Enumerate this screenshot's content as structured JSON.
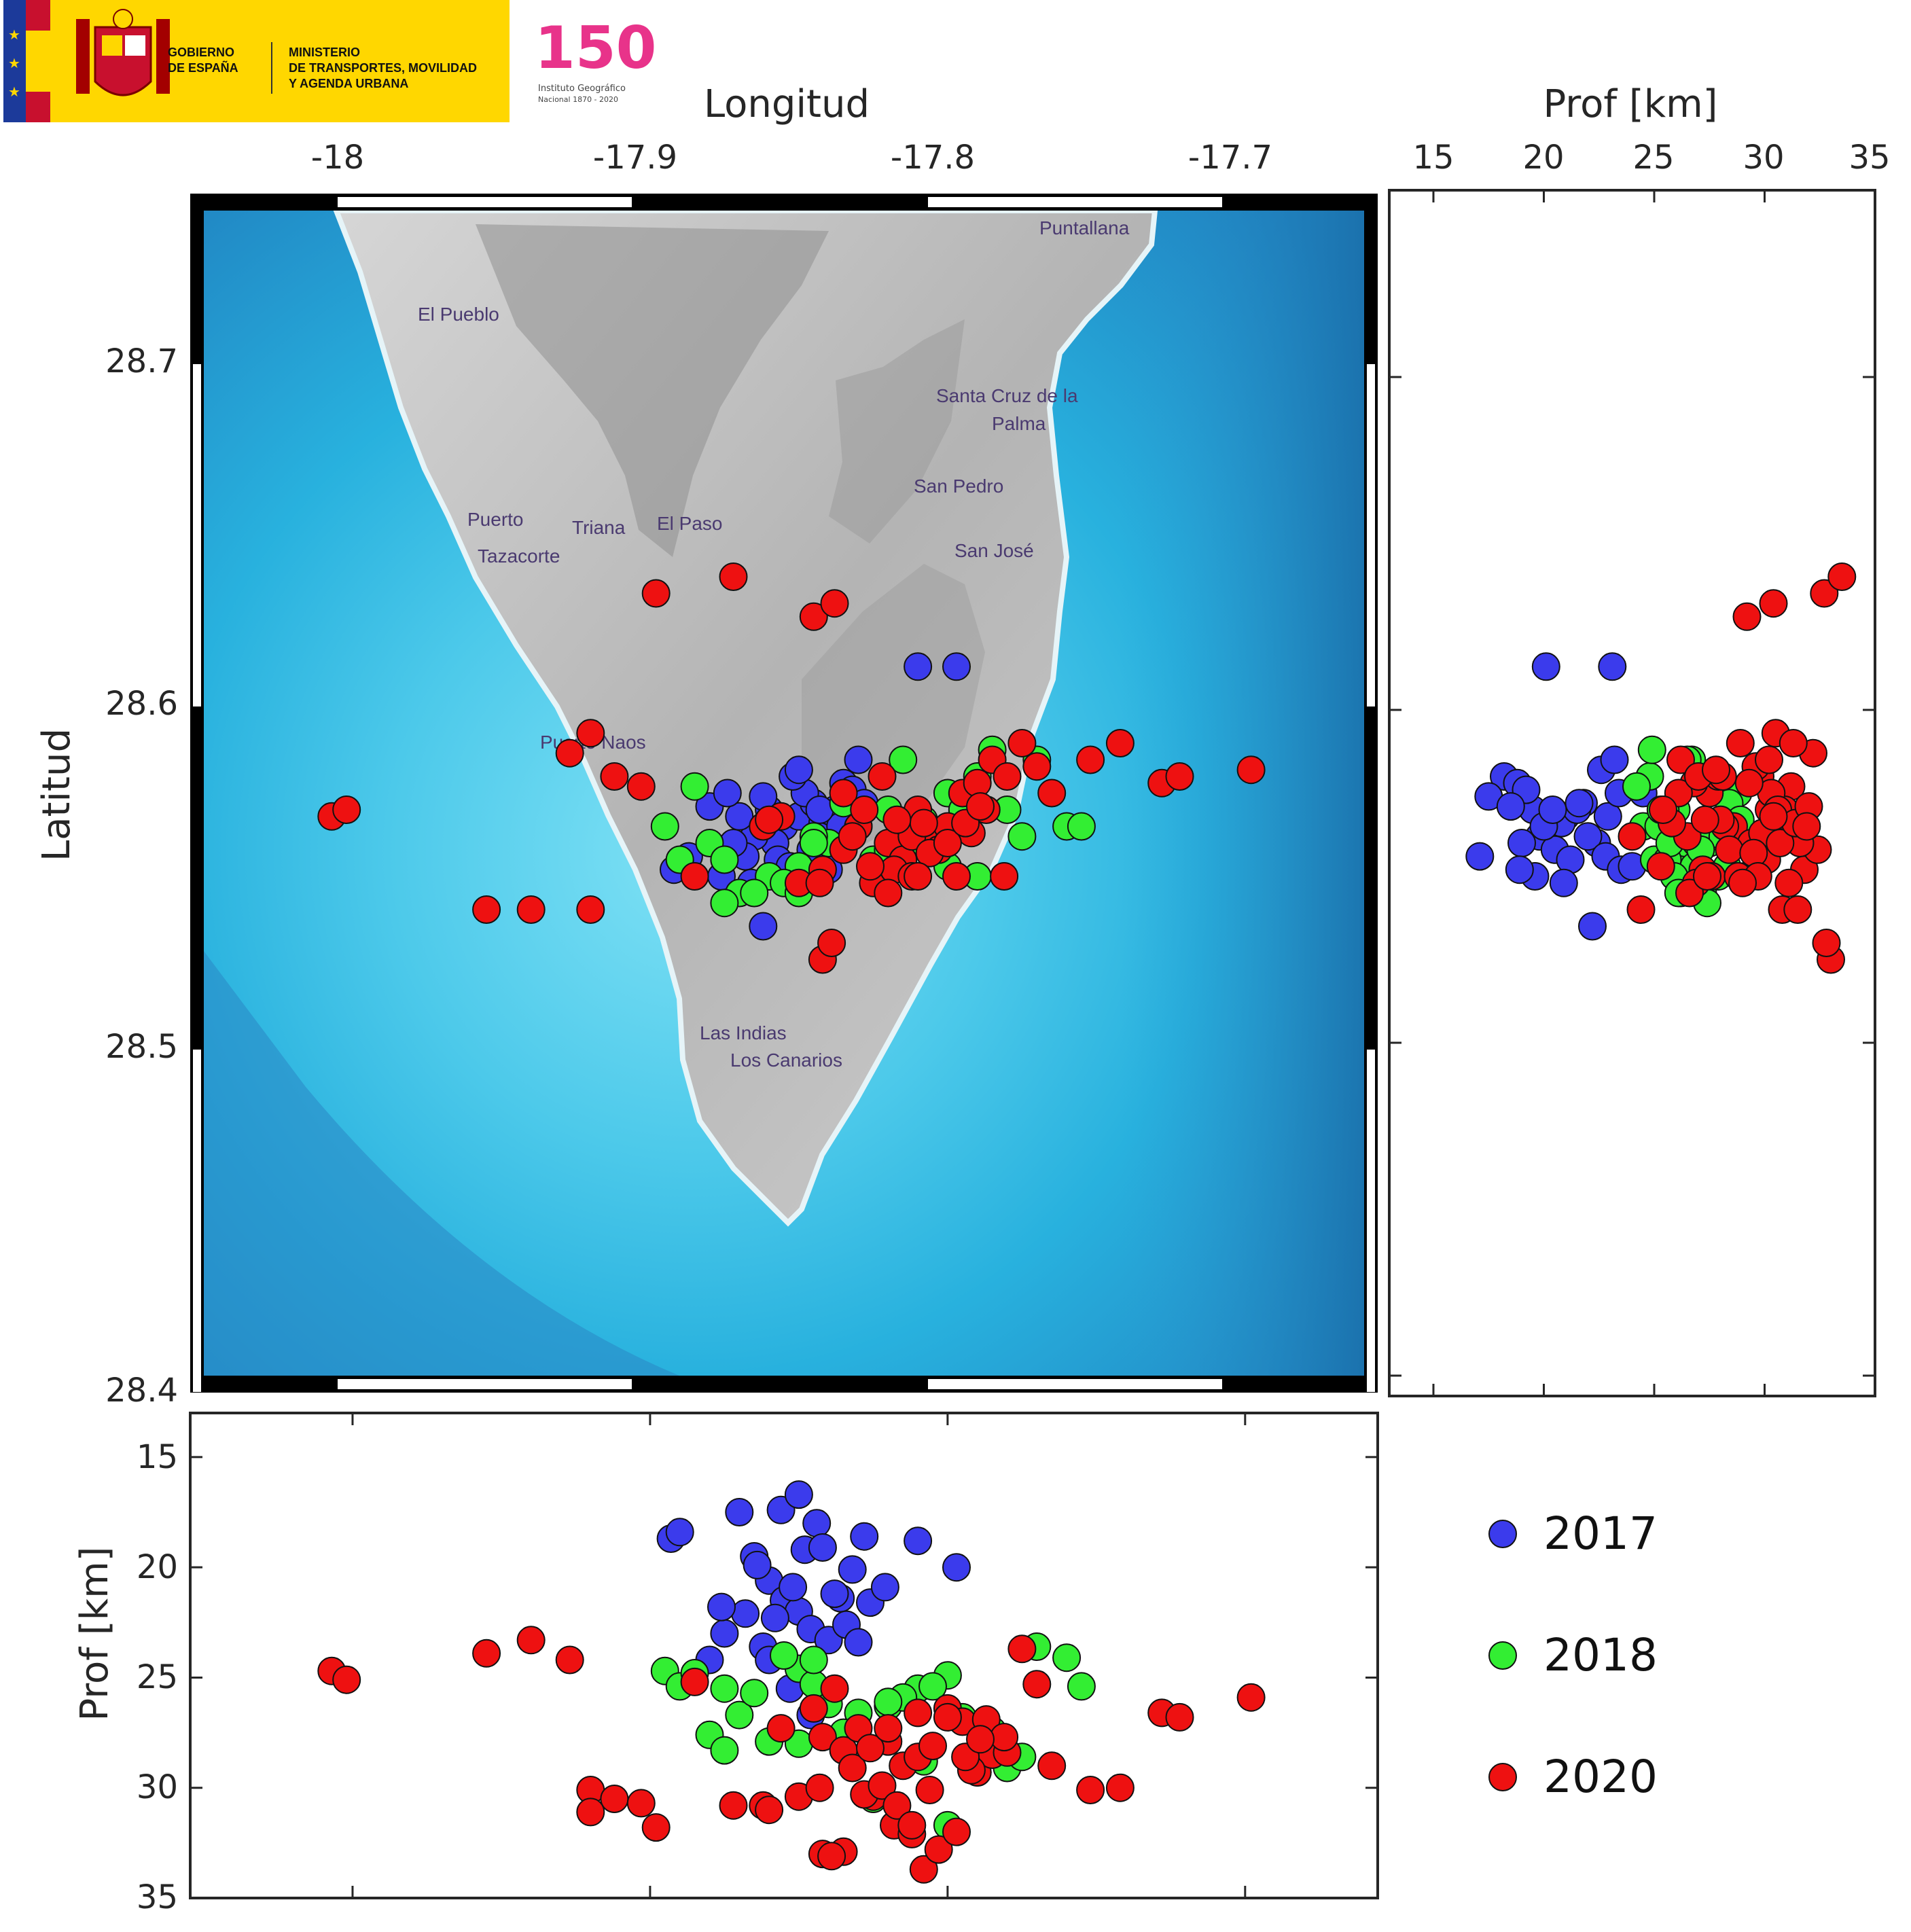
{
  "header": {
    "gov_line1": "GOBIERNO",
    "gov_line2": "DE ESPAÑA",
    "ministry_line1": "MINISTERIO",
    "ministry_line2": "DE TRANSPORTES, MOVILIDAD",
    "ministry_line3": "Y AGENDA URBANA",
    "anniv_number": "150",
    "anniv_line1": "Instituto Geográfico",
    "anniv_line2": "Nacional 1870 - 2020",
    "colors": {
      "banner": "#ffd700",
      "flag_red": "#c8102e",
      "eu_blue": "#1c3a9a"
    }
  },
  "map": {
    "places": [
      "Puntallana",
      "El Pueblo",
      "Santa Cruz de la",
      "Palma",
      "San Pedro",
      "Puerto",
      "Tazacorte",
      "Triana",
      "El Paso",
      "San José",
      "Puerto Naos",
      "Las Indias",
      "Los Canarios"
    ],
    "colors": {
      "deep_sea": "#2a86c4",
      "shallow_sea": "#3fc0e6",
      "land": "#c6c6c6"
    }
  },
  "chart_data": [
    {
      "panel": "map",
      "type": "scatter",
      "xlabel": "Longitud",
      "ylabel": "Latitud",
      "xlim": [
        -18.05,
        -17.66
      ],
      "ylim": [
        28.4,
        28.75
      ],
      "xticks": [
        "-18",
        "-17.9",
        "-17.8",
        "-17.7"
      ],
      "yticks": [
        "28.4",
        "28.5",
        "28.6",
        "28.7"
      ],
      "series": [
        {
          "name": "2017",
          "color": "#3b3bec",
          "x": [
            -17.86,
            -17.855,
            -17.85,
            -17.845,
            -17.858,
            -17.842,
            -17.865,
            -17.838,
            -17.87,
            -17.848,
            -17.852,
            -17.835,
            -17.862,
            -17.832,
            -17.846,
            -17.857,
            -17.843,
            -17.868,
            -17.84,
            -17.853,
            -17.872,
            -17.836,
            -17.828,
            -17.85,
            -17.88,
            -17.887,
            -17.876,
            -17.866,
            -17.83,
            -17.874,
            -17.892,
            -17.81,
            -17.797,
            -17.862,
            -17.843
          ],
          "y": [
            28.57,
            28.565,
            28.568,
            28.572,
            28.56,
            28.566,
            28.562,
            28.57,
            28.568,
            28.575,
            28.58,
            28.578,
            28.574,
            28.576,
            28.558,
            28.555,
            28.562,
            28.556,
            28.552,
            28.553,
            28.56,
            28.565,
            28.572,
            28.582,
            28.571,
            28.556,
            28.55,
            28.548,
            28.585,
            28.575,
            28.552,
            28.613,
            28.613,
            28.535,
            28.57
          ]
        },
        {
          "name": "2018",
          "color": "#33ee33",
          "x": [
            -17.895,
            -17.89,
            -17.88,
            -17.87,
            -17.86,
            -17.85,
            -17.84,
            -17.83,
            -17.82,
            -17.81,
            -17.8,
            -17.79,
            -17.78,
            -17.77,
            -17.76,
            -17.755,
            -17.885,
            -17.875,
            -17.865,
            -17.855,
            -17.845,
            -17.825,
            -17.815,
            -17.805,
            -17.795,
            -17.785,
            -17.775,
            -17.8,
            -17.79,
            -17.82,
            -17.835,
            -17.85,
            -17.875,
            -17.845,
            -17.808
          ],
          "y": [
            28.565,
            28.555,
            28.56,
            28.545,
            28.55,
            28.553,
            28.56,
            28.565,
            28.57,
            28.56,
            28.575,
            28.58,
            28.57,
            28.585,
            28.565,
            28.565,
            28.577,
            28.555,
            28.545,
            28.548,
            28.562,
            28.555,
            28.585,
            28.562,
            28.57,
            28.588,
            28.562,
            28.553,
            28.55,
            28.558,
            28.572,
            28.545,
            28.542,
            28.56,
            28.567
          ]
        },
        {
          "name": "2020",
          "color": "#ee1111",
          "x": [
            -18.007,
            -18.002,
            -17.955,
            -17.94,
            -17.927,
            -17.92,
            -17.912,
            -17.903,
            -17.898,
            -17.872,
            -17.845,
            -17.838,
            -17.842,
            -17.835,
            -17.83,
            -17.82,
            -17.815,
            -17.81,
            -17.805,
            -17.8,
            -17.795,
            -17.79,
            -17.785,
            -17.78,
            -17.775,
            -17.77,
            -17.765,
            -17.825,
            -17.818,
            -17.812,
            -17.808,
            -17.803,
            -17.797,
            -17.792,
            -17.787,
            -17.781,
            -17.835,
            -17.828,
            -17.822,
            -17.817,
            -17.812,
            -17.806,
            -17.8,
            -17.794,
            -17.789,
            -17.85,
            -17.842,
            -17.839,
            -17.832,
            -17.826,
            -17.82,
            -17.81,
            -17.752,
            -17.742,
            -17.728,
            -17.722,
            -17.698,
            -17.885,
            -17.856,
            -17.862,
            -17.86,
            -17.843,
            -17.92
          ],
          "y": [
            28.568,
            28.57,
            28.54,
            28.54,
            28.587,
            28.593,
            28.58,
            28.577,
            28.635,
            28.64,
            28.628,
            28.632,
            28.552,
            28.558,
            28.565,
            28.56,
            28.555,
            28.57,
            28.56,
            28.565,
            28.575,
            28.578,
            28.585,
            28.58,
            28.59,
            28.583,
            28.575,
            28.548,
            28.552,
            28.562,
            28.566,
            28.558,
            28.55,
            28.563,
            28.57,
            28.55,
            28.575,
            28.57,
            28.58,
            28.567,
            28.55,
            28.557,
            28.56,
            28.566,
            28.571,
            28.548,
            28.525,
            28.53,
            28.562,
            28.553,
            28.545,
            28.55,
            28.585,
            28.59,
            28.578,
            28.58,
            28.582,
            28.55,
            28.568,
            28.565,
            28.567,
            28.548,
            28.54
          ]
        }
      ]
    },
    {
      "panel": "depth-vs-latitude",
      "type": "scatter",
      "xlabel": "Prof [km]",
      "xlim": [
        13,
        35
      ],
      "ylim": [
        28.4,
        28.75
      ],
      "xticks": [
        "15",
        "20",
        "25",
        "30",
        "35"
      ],
      "series": [
        {
          "name": "2017",
          "color": "#3b3bec",
          "x": [
            19.5,
            20.2,
            21,
            21.8,
            22.4,
            20.8,
            19.8,
            21.5,
            22.9,
            23.4,
            18.2,
            18.8,
            17.5,
            19.2,
            20.5,
            21.2,
            22,
            22.8,
            23.5,
            24,
            19,
            20,
            21.6,
            22.6,
            18.5,
            17.1,
            19.6,
            20.9,
            23.2,
            24.5,
            18.9,
            20.1,
            23.1,
            22.2,
            20.4
          ],
          "y": [
            28.57,
            28.565,
            28.568,
            28.572,
            28.56,
            28.566,
            28.562,
            28.57,
            28.568,
            28.575,
            28.58,
            28.578,
            28.574,
            28.576,
            28.558,
            28.555,
            28.562,
            28.556,
            28.552,
            28.553,
            28.56,
            28.565,
            28.572,
            28.582,
            28.571,
            28.556,
            28.55,
            28.548,
            28.585,
            28.575,
            28.552,
            28.613,
            28.613,
            28.535,
            28.57
          ]
        },
        {
          "name": "2018",
          "color": "#33ee33",
          "x": [
            24.5,
            25.8,
            26.4,
            27.2,
            27.9,
            28.3,
            26.9,
            25.2,
            26,
            27.5,
            28.8,
            24.8,
            25.5,
            26.7,
            27.7,
            28.6,
            24.2,
            25,
            26.2,
            27,
            27.6,
            25.6,
            26.5,
            27.3,
            25.3,
            24.9,
            28.1,
            26.8,
            25.9,
            27.1,
            28.4,
            26.1,
            27.4,
            25.7,
            28.9
          ],
          "y": [
            28.565,
            28.555,
            28.56,
            28.545,
            28.55,
            28.553,
            28.56,
            28.565,
            28.57,
            28.56,
            28.575,
            28.58,
            28.57,
            28.585,
            28.565,
            28.565,
            28.577,
            28.555,
            28.545,
            28.548,
            28.562,
            28.555,
            28.585,
            28.562,
            28.57,
            28.588,
            28.562,
            28.553,
            28.55,
            28.558,
            28.572,
            28.545,
            28.542,
            28.56,
            28.567
          ]
        },
        {
          "name": "2020",
          "color": "#ee1111",
          "x": [
            31,
            30.2,
            30.8,
            31.5,
            32.2,
            30.5,
            29.8,
            31.2,
            32.7,
            33.5,
            29.2,
            30.4,
            31.8,
            32.4,
            28.6,
            29.4,
            30.1,
            30.9,
            31.6,
            28.2,
            27.5,
            26.8,
            26.2,
            27.9,
            28.9,
            29.6,
            30.3,
            31.1,
            27.2,
            26.5,
            25.8,
            28.4,
            29.1,
            29.9,
            30.6,
            27.6,
            26.1,
            25.4,
            27,
            28,
            28.8,
            29.5,
            30.7,
            31.4,
            32,
            26.9,
            33,
            32.8,
            24,
            25.3,
            26.6,
            27.4,
            30.2,
            31.3,
            29.3,
            28.1,
            27.8,
            29.7,
            30.4,
            31.9,
            27.3,
            29,
            24.4
          ],
          "y": [
            28.568,
            28.57,
            28.54,
            28.54,
            28.587,
            28.593,
            28.58,
            28.577,
            28.635,
            28.64,
            28.628,
            28.632,
            28.552,
            28.558,
            28.565,
            28.56,
            28.555,
            28.57,
            28.56,
            28.565,
            28.575,
            28.578,
            28.585,
            28.58,
            28.59,
            28.583,
            28.575,
            28.548,
            28.552,
            28.562,
            28.566,
            28.558,
            28.55,
            28.563,
            28.57,
            28.55,
            28.575,
            28.57,
            28.58,
            28.567,
            28.55,
            28.557,
            28.56,
            28.566,
            28.571,
            28.548,
            28.525,
            28.53,
            28.562,
            28.553,
            28.545,
            28.55,
            28.585,
            28.59,
            28.578,
            28.58,
            28.582,
            28.55,
            28.568,
            28.565,
            28.567,
            28.548,
            28.54
          ]
        }
      ]
    },
    {
      "panel": "longitude-vs-depth",
      "type": "scatter",
      "ylabel": "Prof [km]",
      "xlim": [
        -18.05,
        -17.66
      ],
      "ylim": [
        13,
        35
      ],
      "yticks": [
        "15",
        "20",
        "25",
        "30",
        "35"
      ],
      "series": [
        {
          "name": "2017",
          "color": "#3b3bec",
          "x": [
            -17.893,
            -17.89,
            -17.87,
            -17.865,
            -17.86,
            -17.855,
            -17.85,
            -17.846,
            -17.84,
            -17.836,
            -17.832,
            -17.828,
            -17.862,
            -17.858,
            -17.852,
            -17.848,
            -17.844,
            -17.838,
            -17.834,
            -17.83,
            -17.88,
            -17.875,
            -17.868,
            -17.864,
            -17.856,
            -17.85,
            -17.842,
            -17.826,
            -17.821,
            -17.876,
            -17.86,
            -17.853,
            -17.81,
            -17.797,
            -17.846
          ],
          "y": [
            18.7,
            18.4,
            17.5,
            19.5,
            20.6,
            21.5,
            22,
            22.8,
            23.3,
            21.4,
            20.1,
            18.6,
            23.6,
            22.3,
            20.9,
            19.2,
            18,
            21.2,
            22.6,
            23.4,
            24.2,
            23,
            22.1,
            19.9,
            17.4,
            16.7,
            19.1,
            21.6,
            20.9,
            21.8,
            24.2,
            25.5,
            18.8,
            20,
            26.7
          ]
        },
        {
          "name": "2018",
          "color": "#33ee33",
          "x": [
            -17.895,
            -17.89,
            -17.88,
            -17.87,
            -17.86,
            -17.85,
            -17.84,
            -17.83,
            -17.82,
            -17.81,
            -17.8,
            -17.79,
            -17.78,
            -17.77,
            -17.76,
            -17.755,
            -17.885,
            -17.875,
            -17.865,
            -17.855,
            -17.845,
            -17.825,
            -17.815,
            -17.805,
            -17.795,
            -17.785,
            -17.775,
            -17.8,
            -17.79,
            -17.82,
            -17.835,
            -17.85,
            -17.875,
            -17.845,
            -17.808
          ],
          "y": [
            24.7,
            25.4,
            27.6,
            26.7,
            27.9,
            24.6,
            26.2,
            26.6,
            26.3,
            25.5,
            24.9,
            28.4,
            29.1,
            23.6,
            24.1,
            25.4,
            24.8,
            28.3,
            25.7,
            24,
            25.3,
            30.5,
            25.9,
            25.4,
            26.8,
            27.4,
            28.6,
            31.7,
            29.3,
            26.1,
            27.5,
            28,
            25.5,
            24.2,
            28.8
          ]
        },
        {
          "name": "2020",
          "color": "#ee1111",
          "x": [
            -18.007,
            -18.002,
            -17.955,
            -17.94,
            -17.927,
            -17.92,
            -17.912,
            -17.903,
            -17.898,
            -17.872,
            -17.845,
            -17.838,
            -17.842,
            -17.835,
            -17.83,
            -17.82,
            -17.815,
            -17.81,
            -17.805,
            -17.8,
            -17.795,
            -17.79,
            -17.785,
            -17.78,
            -17.775,
            -17.77,
            -17.765,
            -17.825,
            -17.818,
            -17.812,
            -17.808,
            -17.803,
            -17.797,
            -17.792,
            -17.787,
            -17.781,
            -17.835,
            -17.828,
            -17.822,
            -17.817,
            -17.812,
            -17.806,
            -17.8,
            -17.794,
            -17.789,
            -17.85,
            -17.842,
            -17.839,
            -17.832,
            -17.826,
            -17.82,
            -17.81,
            -17.752,
            -17.742,
            -17.728,
            -17.722,
            -17.698,
            -17.885,
            -17.856,
            -17.862,
            -17.86,
            -17.843,
            -17.92
          ],
          "y": [
            24.7,
            25.1,
            23.9,
            23.3,
            24.2,
            30.1,
            30.5,
            30.7,
            31.8,
            30.8,
            26.4,
            25.5,
            27.7,
            28.3,
            27.3,
            27.9,
            29,
            28.6,
            28.1,
            26.4,
            27,
            29.3,
            28.5,
            28.4,
            23.7,
            25.3,
            29,
            30.4,
            31.7,
            32.1,
            33.7,
            32.8,
            32,
            29.2,
            26.9,
            27.7,
            32.9,
            30.3,
            29.9,
            30.8,
            31.7,
            30.1,
            26.8,
            28.6,
            27.8,
            30.4,
            33,
            33.1,
            29.1,
            28.2,
            27.3,
            26.6,
            30.1,
            30,
            26.6,
            26.8,
            25.9,
            25.2,
            27.3,
            30.8,
            31,
            30,
            31.1
          ]
        }
      ]
    }
  ],
  "legend": [
    {
      "label": "2017",
      "color": "#3b3bec"
    },
    {
      "label": "2018",
      "color": "#33ee33"
    },
    {
      "label": "2020",
      "color": "#ee1111"
    }
  ]
}
